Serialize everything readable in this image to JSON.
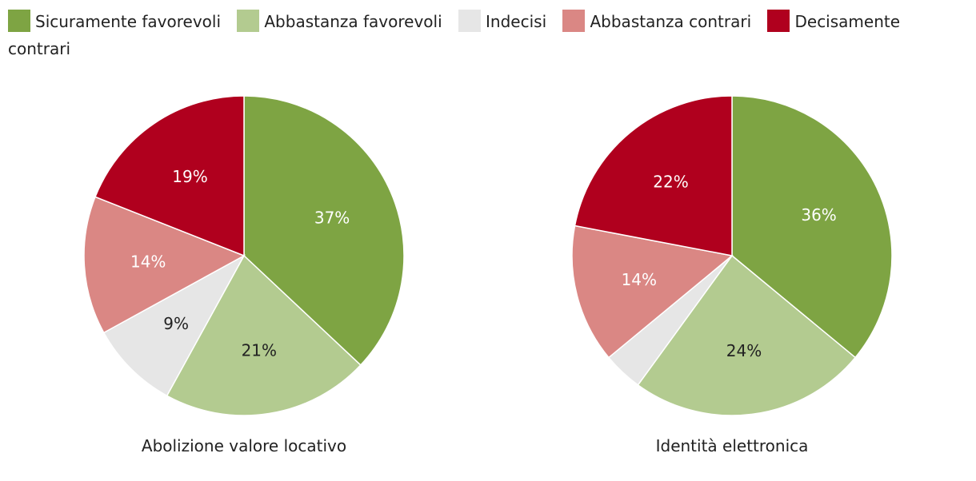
{
  "legend": {
    "items": [
      {
        "label": "Sicuramente favorevoli",
        "color": "#7ea443"
      },
      {
        "label": "Abbastanza favorevoli",
        "color": "#b3cb90"
      },
      {
        "label": "Indecisi",
        "color": "#e6e6e6"
      },
      {
        "label": "Abbastanza contrari",
        "color": "#da8784"
      },
      {
        "label": "Decisamente contrari",
        "color": "#b0001e"
      }
    ]
  },
  "chart_data": [
    {
      "type": "pie",
      "title": "Abolizione valore locativo",
      "categories": [
        "Sicuramente favorevoli",
        "Abbastanza favorevoli",
        "Indecisi",
        "Abbastanza contrari",
        "Decisamente contrari"
      ],
      "values": [
        37,
        21,
        9,
        14,
        19
      ],
      "labels": [
        "37%",
        "21%",
        "9%",
        "14%",
        "19%"
      ],
      "colors": [
        "#7ea443",
        "#b3cb90",
        "#e6e6e6",
        "#da8784",
        "#b0001e"
      ],
      "label_colors": [
        "#ffffff",
        "#222222",
        "#222222",
        "#ffffff",
        "#ffffff"
      ]
    },
    {
      "type": "pie",
      "title": "Identità elettronica",
      "categories": [
        "Sicuramente favorevoli",
        "Abbastanza favorevoli",
        "Indecisi",
        "Abbastanza contrari",
        "Decisamente contrari"
      ],
      "values": [
        36,
        24,
        4,
        14,
        22
      ],
      "labels": [
        "36%",
        "24%",
        "",
        "14%",
        "22%"
      ],
      "colors": [
        "#7ea443",
        "#b3cb90",
        "#e6e6e6",
        "#da8784",
        "#b0001e"
      ],
      "label_colors": [
        "#ffffff",
        "#222222",
        "#222222",
        "#ffffff",
        "#ffffff"
      ]
    }
  ]
}
